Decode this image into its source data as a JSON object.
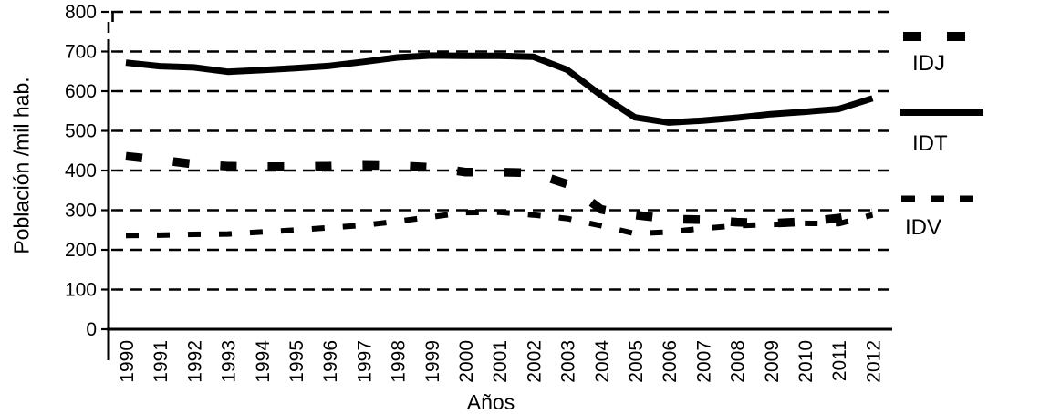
{
  "chart_data": {
    "type": "line",
    "title": "",
    "xlabel": "Años",
    "ylabel": "Población /mil hab.",
    "x": [
      "1990",
      "1991",
      "1992",
      "1993",
      "1994",
      "1995",
      "1996",
      "1997",
      "1998",
      "1999",
      "2000",
      "2001",
      "2002",
      "2003",
      "2004",
      "2005",
      "2006",
      "2007",
      "2008",
      "2009",
      "2010",
      "2011",
      "2012"
    ],
    "ylim": [
      0,
      800
    ],
    "ytick_step": 100,
    "grid": "horizontal-dashed",
    "legend_position": "right",
    "series": [
      {
        "name": "IDJ",
        "style": "dashed-thick",
        "color": "#000000",
        "values": [
          436,
          427,
          416,
          411,
          410,
          410,
          411,
          413,
          412,
          408,
          396,
          396,
          394,
          366,
          302,
          288,
          278,
          276,
          270,
          267,
          271,
          280,
          294
        ]
      },
      {
        "name": "IDT",
        "style": "solid-thick",
        "color": "#000000",
        "values": [
          672,
          663,
          660,
          649,
          653,
          658,
          664,
          674,
          685,
          690,
          689,
          689,
          687,
          654,
          590,
          534,
          521,
          526,
          533,
          542,
          548,
          555,
          582
        ]
      },
      {
        "name": "IDV",
        "style": "dashed-small",
        "color": "#000000",
        "values": [
          236,
          237,
          239,
          240,
          245,
          250,
          256,
          262,
          272,
          283,
          294,
          295,
          288,
          279,
          261,
          241,
          245,
          254,
          261,
          264,
          267,
          266,
          288
        ]
      }
    ]
  },
  "colors": {
    "foreground": "#000000",
    "background": "#ffffff"
  }
}
